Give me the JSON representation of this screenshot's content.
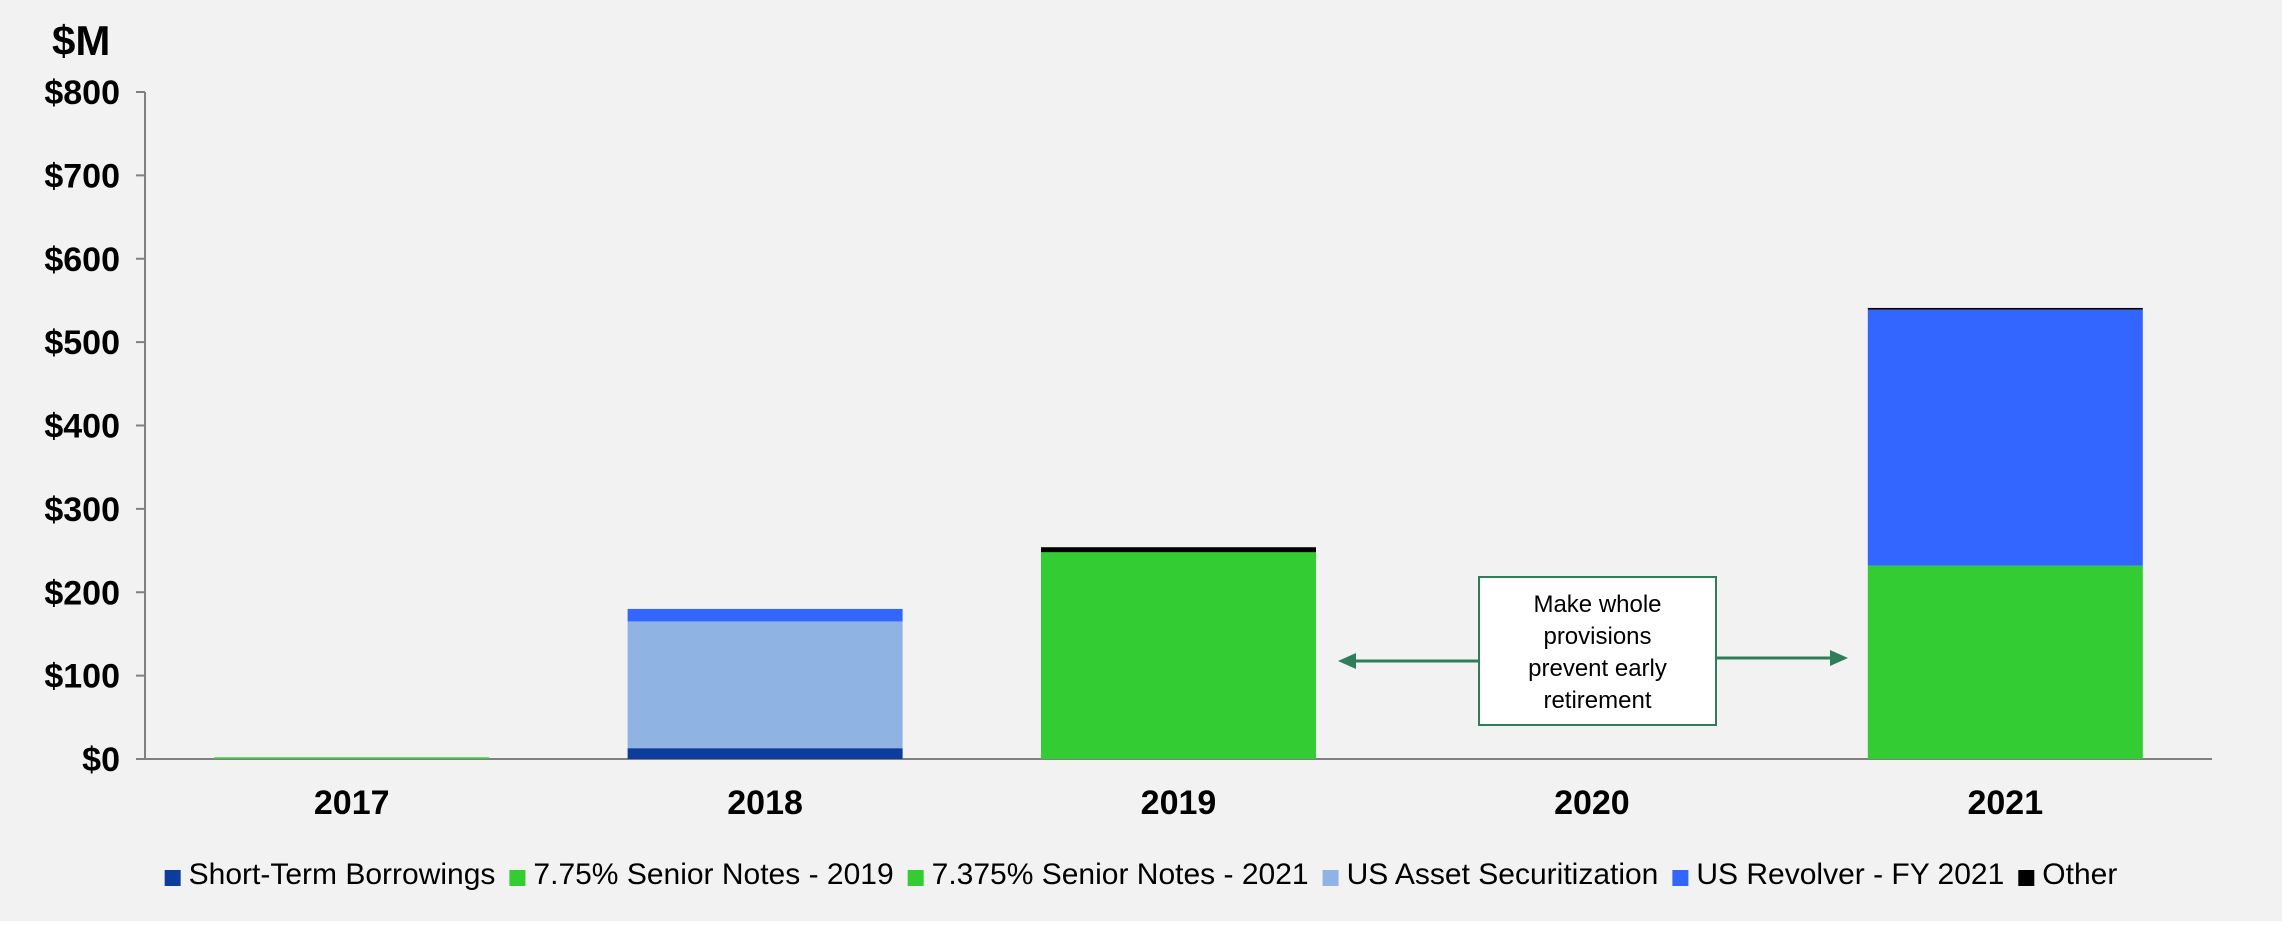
{
  "chart_data": {
    "type": "bar",
    "stacked": true,
    "unit_label": "$M",
    "title": "",
    "xlabel": "",
    "ylabel": "",
    "categories": [
      "2017",
      "2018",
      "2019",
      "2020",
      "2021"
    ],
    "ylim": [
      0,
      800
    ],
    "yticks": [
      0,
      100,
      200,
      300,
      400,
      500,
      600,
      700,
      800
    ],
    "ytick_labels": [
      "$0",
      "$100",
      "$200",
      "$300",
      "$400",
      "$500",
      "$600",
      "$700",
      "$800"
    ],
    "grid": false,
    "legend_position": "bottom",
    "series": [
      {
        "name": "Short-Term Borrowings",
        "color": "#0c3c9c",
        "values": [
          0,
          13,
          0,
          0,
          0
        ]
      },
      {
        "name": "7.75% Senior Notes - 2019",
        "color": "#33cc33",
        "values": [
          0,
          0,
          248,
          0,
          0
        ]
      },
      {
        "name": "7.375% Senior Notes - 2021",
        "color": "#33cc33",
        "values": [
          2,
          0,
          0,
          0,
          232
        ]
      },
      {
        "name": "US Asset Securitization",
        "color": "#8fb4e3",
        "values": [
          0,
          152,
          0,
          0,
          0
        ]
      },
      {
        "name": "US Revolver - FY 2021",
        "color": "#3366ff",
        "values": [
          0,
          15,
          0,
          0,
          307
        ]
      },
      {
        "name": "Other",
        "color": "#000000",
        "values": [
          0,
          0,
          6,
          0,
          2
        ]
      }
    ],
    "annotations": [
      {
        "text_lines": [
          "Make whole",
          "provisions",
          "prevent early",
          "retirement"
        ],
        "arrows": [
          "left",
          "right"
        ],
        "arrow_color": "#2e7d5b"
      }
    ]
  },
  "colors": {
    "background": "#f2f2f2",
    "axis": "#808080",
    "text": "#000000"
  }
}
